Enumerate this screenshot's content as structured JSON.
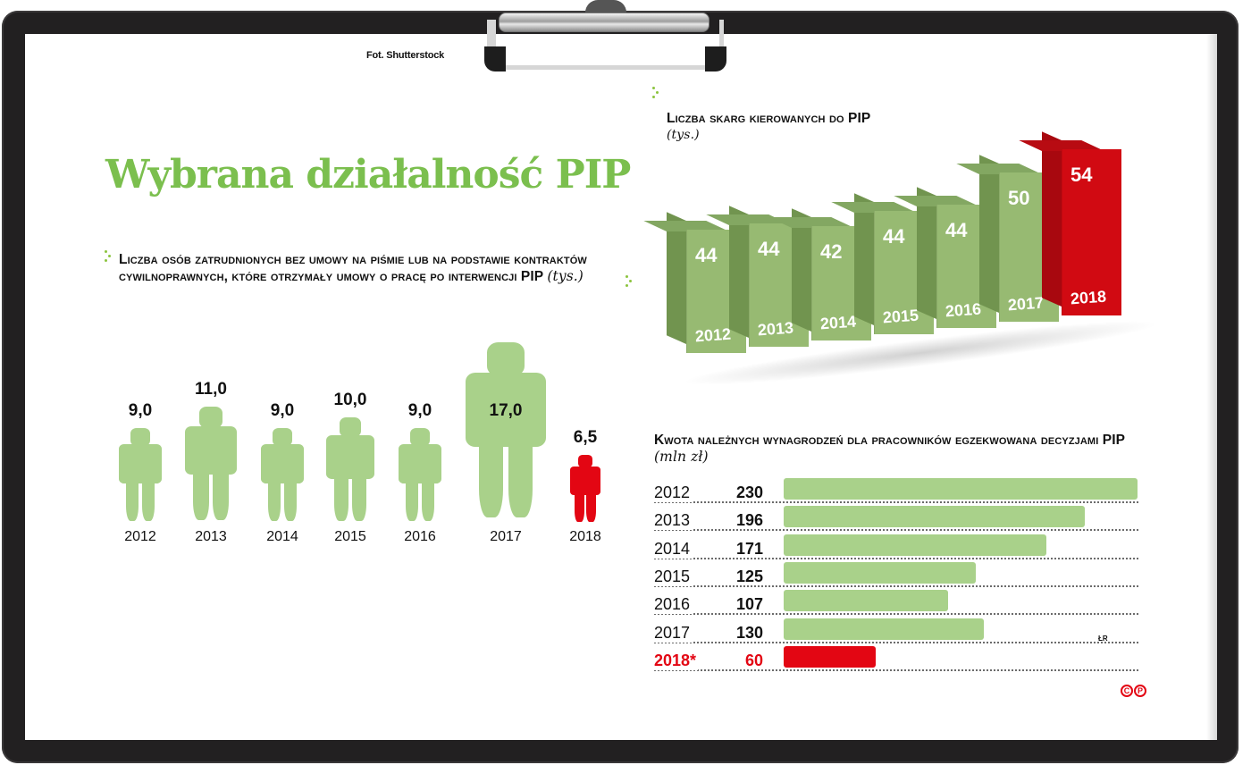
{
  "credit": "Fot. Shutterstock",
  "title": "Wybrana działalność PIP",
  "colors": {
    "green": "#a9d18a",
    "green_front": "#97ba72",
    "green_side": "#71944f",
    "green_top": "#83a762",
    "red": "#e30613",
    "red_front": "#d10a12",
    "red_side": "#a8080f",
    "red_top": "#b80b12",
    "title_green": "#7bbf4e"
  },
  "persons_chart": {
    "title": "Liczba osób zatrudnionych bez umowy na piśmie lub na podstawie kontraktów cywilnoprawnych, które otrzymały umowy o pracę po interwencji PIP",
    "unit": "(tys.)"
  },
  "complaints_chart": {
    "title": "Liczba skarg kierowanych do PIP",
    "unit": "(tys.)"
  },
  "wages_chart": {
    "title": "Kwota należnych wynagrodzeń dla pracowników egzekwowana decyzjami PIP",
    "unit": "(mln zł)"
  },
  "author_initials": "ŁR",
  "copyright_marks": [
    "C",
    "P"
  ],
  "chart_data": [
    {
      "type": "bar",
      "style": "pictogram (person icons scaled by value)",
      "title": "Liczba osób zatrudnionych bez umowy na piśmie lub na podstawie kontraktów cywilnoprawnych, które otrzymały umowy o pracę po interwencji PIP",
      "ylabel": "tys.",
      "categories": [
        "2012",
        "2013",
        "2014",
        "2015",
        "2016",
        "2017",
        "2018"
      ],
      "values": [
        9.0,
        11.0,
        9.0,
        10.0,
        9.0,
        17.0,
        6.5
      ],
      "labels": [
        "9,0",
        "11,0",
        "9,0",
        "10,0",
        "9,0",
        "17,0",
        "6,5"
      ],
      "highlight": "2018",
      "grid": false,
      "legend": null
    },
    {
      "type": "bar",
      "style": "3d columns",
      "title": "Liczba skarg kierowanych do PIP",
      "ylabel": "tys.",
      "categories": [
        "2012",
        "2013",
        "2014",
        "2015",
        "2016",
        "2017",
        "2018"
      ],
      "values": [
        44,
        44,
        42,
        44,
        44,
        50,
        54
      ],
      "highlight": "2018",
      "grid": false,
      "legend": null
    },
    {
      "type": "bar",
      "orientation": "horizontal",
      "title": "Kwota należnych wynagrodzeń dla pracowników egzekwowana decyzjami PIP",
      "xlabel": "mln zł",
      "categories": [
        "2012",
        "2013",
        "2014",
        "2015",
        "2016",
        "2017",
        "2018*"
      ],
      "values": [
        230,
        196,
        171,
        125,
        107,
        130,
        60
      ],
      "highlight": "2018*",
      "xlim": [
        0,
        230
      ],
      "grid": false,
      "legend": null
    }
  ],
  "persons": [
    {
      "year": "2012",
      "label": "9,0",
      "value": 9.0
    },
    {
      "year": "2013",
      "label": "11,0",
      "value": 11.0
    },
    {
      "year": "2014",
      "label": "9,0",
      "value": 9.0
    },
    {
      "year": "2015",
      "label": "10,0",
      "value": 10.0
    },
    {
      "year": "2016",
      "label": "9,0",
      "value": 9.0
    },
    {
      "year": "2017",
      "label": "17,0",
      "value": 17.0
    },
    {
      "year": "2018",
      "label": "6,5",
      "value": 6.5
    }
  ],
  "bars3d": [
    {
      "year": "2012",
      "label": "44"
    },
    {
      "year": "2013",
      "label": "44"
    },
    {
      "year": "2014",
      "label": "42"
    },
    {
      "year": "2015",
      "label": "44"
    },
    {
      "year": "2016",
      "label": "44"
    },
    {
      "year": "2017",
      "label": "50"
    },
    {
      "year": "2018",
      "label": "54"
    }
  ],
  "hbars": [
    {
      "year": "2012",
      "label": "230"
    },
    {
      "year": "2013",
      "label": "196"
    },
    {
      "year": "2014",
      "label": "171"
    },
    {
      "year": "2015",
      "label": "125"
    },
    {
      "year": "2016",
      "label": "107"
    },
    {
      "year": "2017",
      "label": "130"
    },
    {
      "year": "2018*",
      "label": "60"
    }
  ]
}
